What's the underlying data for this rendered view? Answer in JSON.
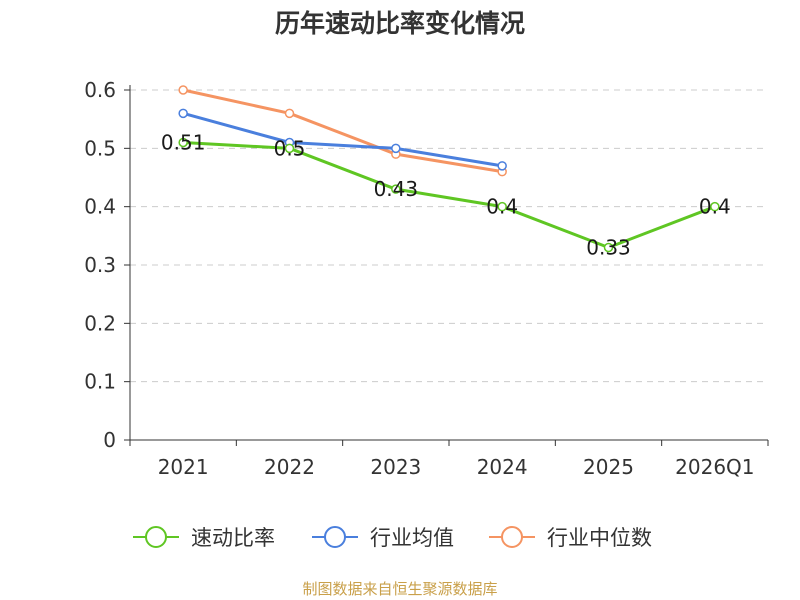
{
  "chart_data": {
    "type": "line",
    "title": "历年速动比率变化情况",
    "xlabel": "",
    "ylabel": "",
    "categories": [
      "2021",
      "2022",
      "2023",
      "2024",
      "2025",
      "2026Q1"
    ],
    "ylim": [
      0,
      0.6
    ],
    "yticks": [
      "0",
      "0.1",
      "0.2",
      "0.3",
      "0.4",
      "0.5",
      "0.6"
    ],
    "grid": true,
    "legend_position": "bottom",
    "series": [
      {
        "name": "速动比率",
        "color": "#5fc623",
        "values": [
          0.51,
          0.5,
          0.43,
          0.4,
          0.33,
          0.4
        ],
        "labels": [
          "0.51",
          "0.5",
          "0.43",
          "0.4",
          "0.33",
          "0.4"
        ]
      },
      {
        "name": "行业均值",
        "color": "#4a7fdd",
        "values": [
          0.56,
          0.51,
          0.5,
          0.47,
          null,
          null
        ]
      },
      {
        "name": "行业中位数",
        "color": "#f59462",
        "values": [
          0.6,
          0.56,
          0.49,
          0.46,
          null,
          null
        ]
      }
    ]
  },
  "footer": {
    "source": "制图数据来自恒生聚源数据库"
  }
}
